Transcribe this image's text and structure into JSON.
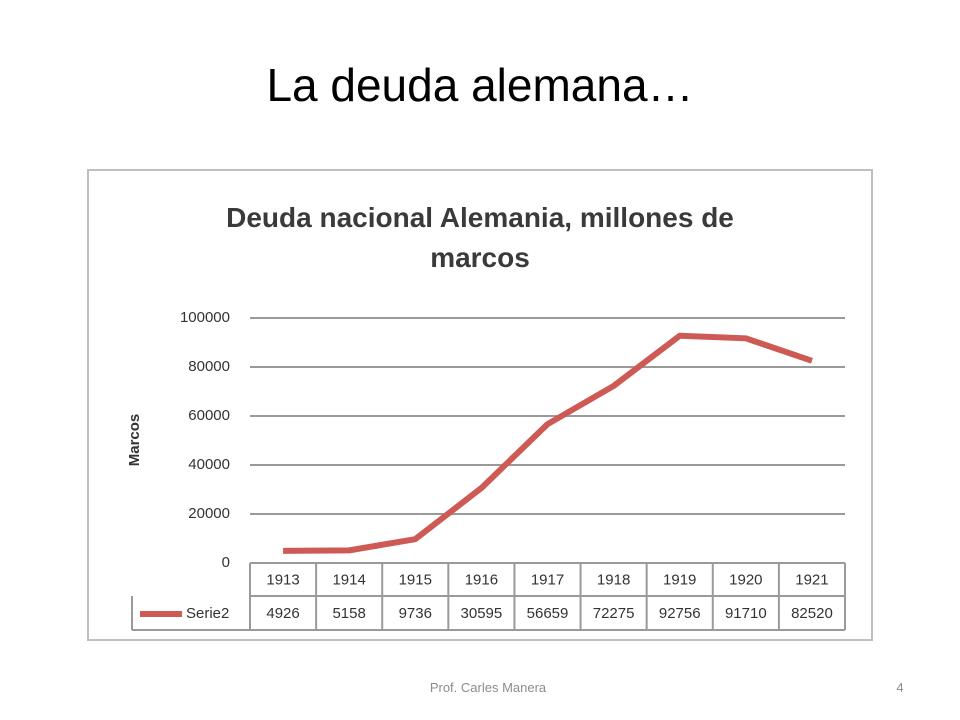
{
  "slide": {
    "title": "La deuda alemana…",
    "footer": "Prof. Carles Manera",
    "page_number": "4"
  },
  "chart_data": {
    "type": "line",
    "title": "Deuda nacional Alemania, millones de marcos",
    "y_label": "Marcos",
    "categories": [
      "1913",
      "1914",
      "1915",
      "1916",
      "1917",
      "1918",
      "1919",
      "1920",
      "1921"
    ],
    "series": [
      {
        "name": "Serie2",
        "color": "#cd5a55",
        "values": [
          4926,
          5158,
          9736,
          30595,
          56659,
          72275,
          92756,
          91710,
          82520
        ]
      }
    ],
    "ylim": [
      0,
      100000
    ],
    "yticks": [
      0,
      20000,
      40000,
      60000,
      80000,
      100000
    ],
    "grid": true,
    "data_table": true
  }
}
